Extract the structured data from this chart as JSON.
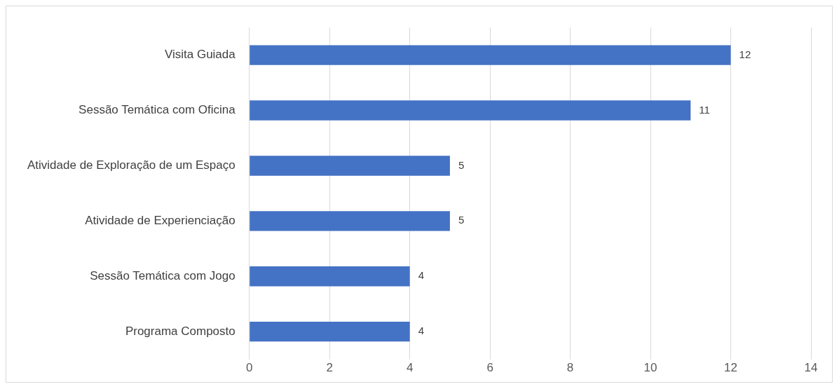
{
  "chart_data": {
    "type": "bar",
    "orientation": "horizontal",
    "categories": [
      "Visita Guiada",
      "Sessão Temática com Oficina",
      "Atividade de Exploração de um Espaço",
      "Atividade de Experienciação",
      "Sessão Temática com Jogo",
      "Programa Composto"
    ],
    "values": [
      12,
      11,
      5,
      5,
      4,
      4
    ],
    "color": "#4472c4",
    "xlim": [
      0,
      14
    ],
    "xticks": [
      0,
      2,
      4,
      6,
      8,
      10,
      12,
      14
    ],
    "grid": "x",
    "data_labels": true,
    "legend": false
  }
}
